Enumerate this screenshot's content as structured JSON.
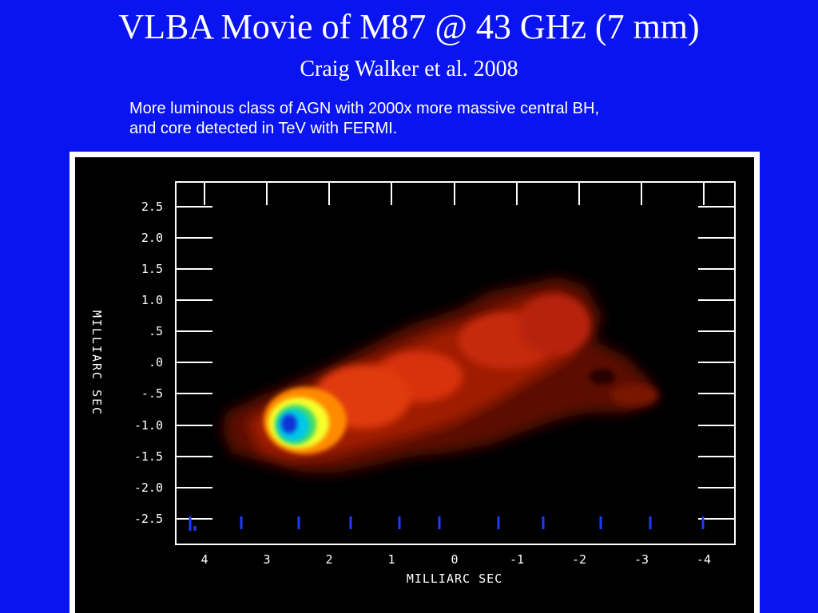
{
  "slide": {
    "title": "VLBA Movie of M87 @ 43 GHz (7 mm)",
    "subtitle": "Craig Walker et al. 2008",
    "description_lines": [
      "More luminous class of AGN with 2000x more massive central BH,",
      "and core detected in TeV with FERMI."
    ]
  },
  "figure": {
    "x_axis_label": "MILLIARC SEC",
    "y_axis_label": "MILLIARC SEC",
    "x_ticks": [
      "4",
      "3",
      "2",
      "1",
      "0",
      "-1",
      "-2",
      "-3",
      "-4"
    ],
    "y_ticks": [
      "2.5",
      "2.0",
      "1.5",
      "1.0",
      ".5",
      ".0",
      "-.5",
      "-1.0",
      "-1.5",
      "-2.0",
      "-2.5"
    ],
    "colors": {
      "background": "#0a14f0",
      "plot_background": "#000000",
      "axis": "#ffffff",
      "tick_marks_bottom": "#1e3cff",
      "jet_outer": "#5a0a00",
      "jet_mid": "#a01e05",
      "jet_bright": "#e03a0a",
      "core_orange": "#ff8a00",
      "core_yellow": "#f6ff2a",
      "core_cyan": "#00c8e8",
      "core_blue": "#1030d8"
    }
  }
}
